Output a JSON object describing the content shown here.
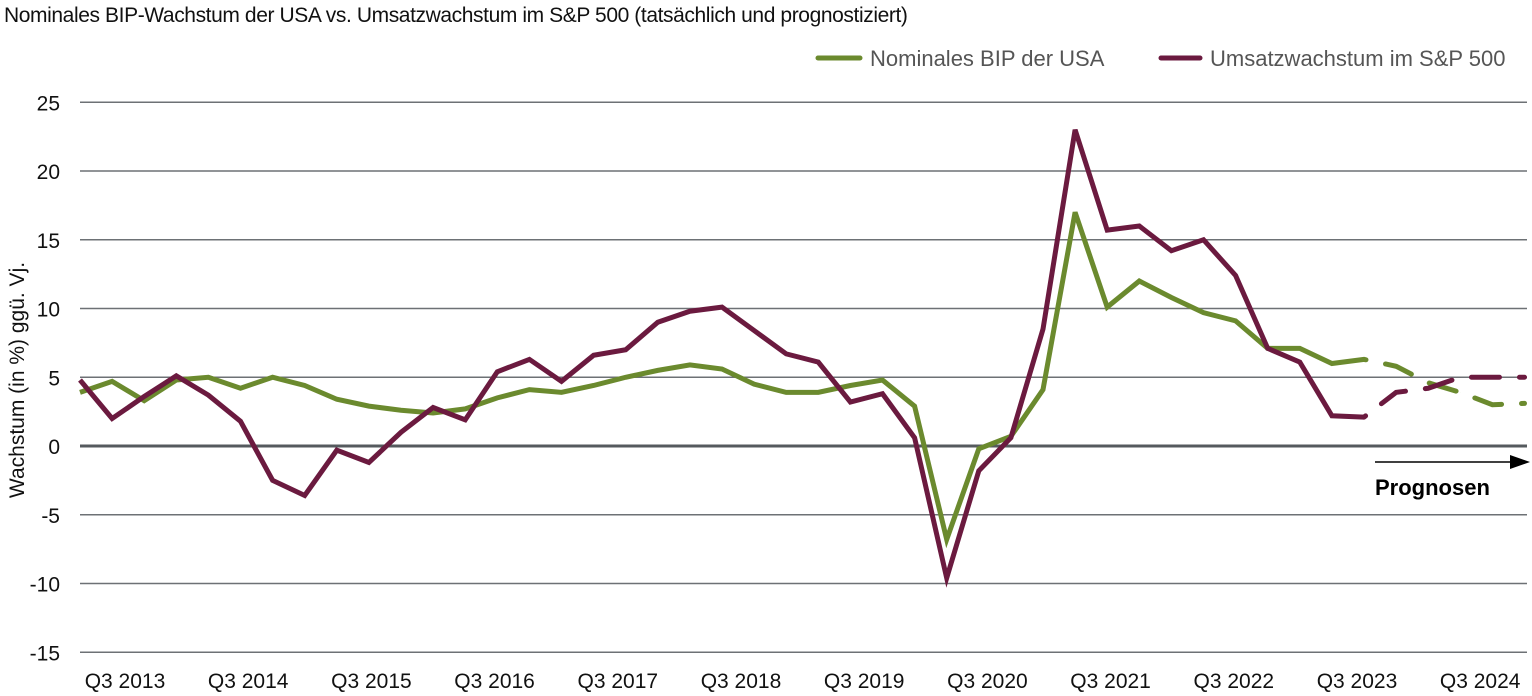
{
  "chart_data": {
    "type": "line",
    "title": "Nominales BIP-Wachstum der USA vs. Umsatzwachstum im S&P 500 (tatsächlich und prognostiziert)",
    "xlabel": "",
    "ylabel": "Wachstum (in %) ggü. Vj.",
    "ylim": [
      -15,
      25
    ],
    "yticks": [
      25,
      20,
      15,
      10,
      5,
      0,
      -5,
      -10,
      -15
    ],
    "xtick_labels": [
      "Q3 2013",
      "Q3 2014",
      "Q3 2015",
      "Q3 2016",
      "Q3 2017",
      "Q3 2018",
      "Q3 2019",
      "Q3 2020",
      "Q3 2021",
      "Q3 2022",
      "Q3 2023",
      "Q3 2024"
    ],
    "grid": true,
    "legend_position": "top-right",
    "forecast_label": "Prognosen",
    "forecast_from_index": 40,
    "series": [
      {
        "name": "Nominales BIP der USA",
        "color": "#6b8a2e",
        "values": [
          3.9,
          4.7,
          3.3,
          4.8,
          5.0,
          4.2,
          5.0,
          4.4,
          3.4,
          2.9,
          2.6,
          2.4,
          2.7,
          3.5,
          4.1,
          3.9,
          4.4,
          5.0,
          5.5,
          5.9,
          5.6,
          4.5,
          3.9,
          3.9,
          4.4,
          4.8,
          2.9,
          -6.8,
          -0.2,
          0.7,
          4.1,
          17.0,
          10.1,
          12.0,
          10.8,
          9.7,
          9.1,
          7.1,
          7.1,
          6.0,
          6.3,
          5.8,
          4.6,
          3.9,
          3.0,
          3.1
        ]
      },
      {
        "name": "Umsatzwachstum im S&P 500",
        "color": "#6b1a3f",
        "values": [
          4.8,
          2.0,
          3.6,
          5.1,
          3.7,
          1.8,
          -2.5,
          -3.6,
          -0.3,
          -1.2,
          1.0,
          2.8,
          1.9,
          5.4,
          6.3,
          4.7,
          6.6,
          7.0,
          9.0,
          9.8,
          10.1,
          8.4,
          6.7,
          6.1,
          3.2,
          3.8,
          0.6,
          -9.6,
          -1.8,
          0.6,
          8.5,
          23.0,
          15.7,
          16.0,
          14.2,
          15.0,
          12.4,
          7.1,
          6.1,
          2.2,
          2.1,
          3.9,
          4.2,
          5.0,
          5.0,
          5.0
        ]
      }
    ]
  }
}
